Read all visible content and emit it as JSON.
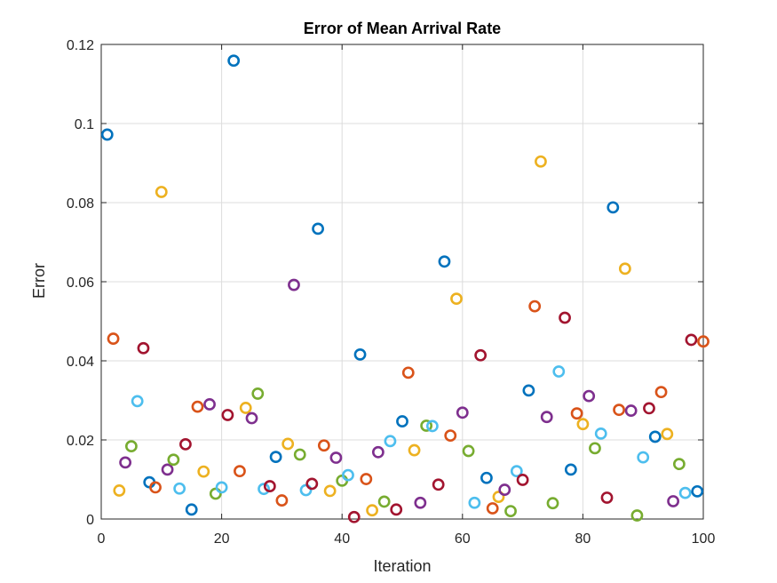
{
  "chart_data": {
    "type": "scatter",
    "title": "Error of Mean Arrival Rate",
    "xlabel": "Iteration",
    "ylabel": "Error",
    "xlim": [
      0,
      100
    ],
    "ylim": [
      0,
      0.12
    ],
    "xticks": [
      "0",
      "20",
      "40",
      "60",
      "80",
      "100"
    ],
    "yticks": [
      "0",
      "0.02",
      "0.04",
      "0.06",
      "0.08",
      "0.1",
      "0.12"
    ],
    "grid": true,
    "marker": "circle-open",
    "color_cycle": [
      "#0072BD",
      "#D95319",
      "#EDB120",
      "#7E2F8E",
      "#77AC30",
      "#4DBEEE",
      "#A2142F"
    ],
    "x": [
      1,
      2,
      3,
      4,
      5,
      6,
      7,
      8,
      9,
      10,
      11,
      12,
      13,
      14,
      15,
      16,
      17,
      18,
      19,
      20,
      21,
      22,
      23,
      24,
      25,
      26,
      27,
      28,
      29,
      30,
      31,
      32,
      33,
      34,
      35,
      36,
      37,
      38,
      39,
      40,
      41,
      42,
      43,
      44,
      45,
      46,
      47,
      48,
      49,
      50,
      51,
      52,
      53,
      54,
      55,
      56,
      57,
      58,
      59,
      60,
      61,
      62,
      63,
      64,
      65,
      66,
      67,
      68,
      69,
      70,
      71,
      72,
      73,
      74,
      75,
      76,
      77,
      78,
      79,
      80,
      81,
      82,
      83,
      84,
      85,
      86,
      87,
      88,
      89,
      90,
      91,
      92,
      93,
      94,
      95,
      96,
      97,
      98,
      99,
      100
    ],
    "y": [
      0.0972,
      0.0456,
      0.0072,
      0.0143,
      0.0184,
      0.0298,
      0.0432,
      0.0093,
      0.008,
      0.0827,
      0.0125,
      0.015,
      0.0077,
      0.0189,
      0.0024,
      0.0284,
      0.012,
      0.029,
      0.0064,
      0.008,
      0.0263,
      0.1159,
      0.0121,
      0.0281,
      0.0255,
      0.0317,
      0.0076,
      0.0083,
      0.0157,
      0.0047,
      0.019,
      0.0592,
      0.0163,
      0.0073,
      0.0089,
      0.0734,
      0.0186,
      0.0071,
      0.0155,
      0.0097,
      0.0111,
      0.0005,
      0.0416,
      0.0101,
      0.0022,
      0.0169,
      0.0044,
      0.0197,
      0.0024,
      0.0247,
      0.037,
      0.0174,
      0.0041,
      0.0236,
      0.0235,
      0.0087,
      0.0651,
      0.0211,
      0.0557,
      0.0269,
      0.0172,
      0.0041,
      0.0414,
      0.0104,
      0.0027,
      0.0056,
      0.0074,
      0.002,
      0.0121,
      0.0099,
      0.0325,
      0.0538,
      0.0904,
      0.0258,
      0.004,
      0.0373,
      0.0509,
      0.0125,
      0.0267,
      0.024,
      0.0311,
      0.0179,
      0.0216,
      0.0054,
      0.0788,
      0.0276,
      0.0633,
      0.0274,
      0.0009,
      0.0156,
      0.028,
      0.0208,
      0.0321,
      0.0215,
      0.0045,
      0.0139,
      0.0066,
      0.0453,
      0.007,
      0.0449
    ]
  }
}
